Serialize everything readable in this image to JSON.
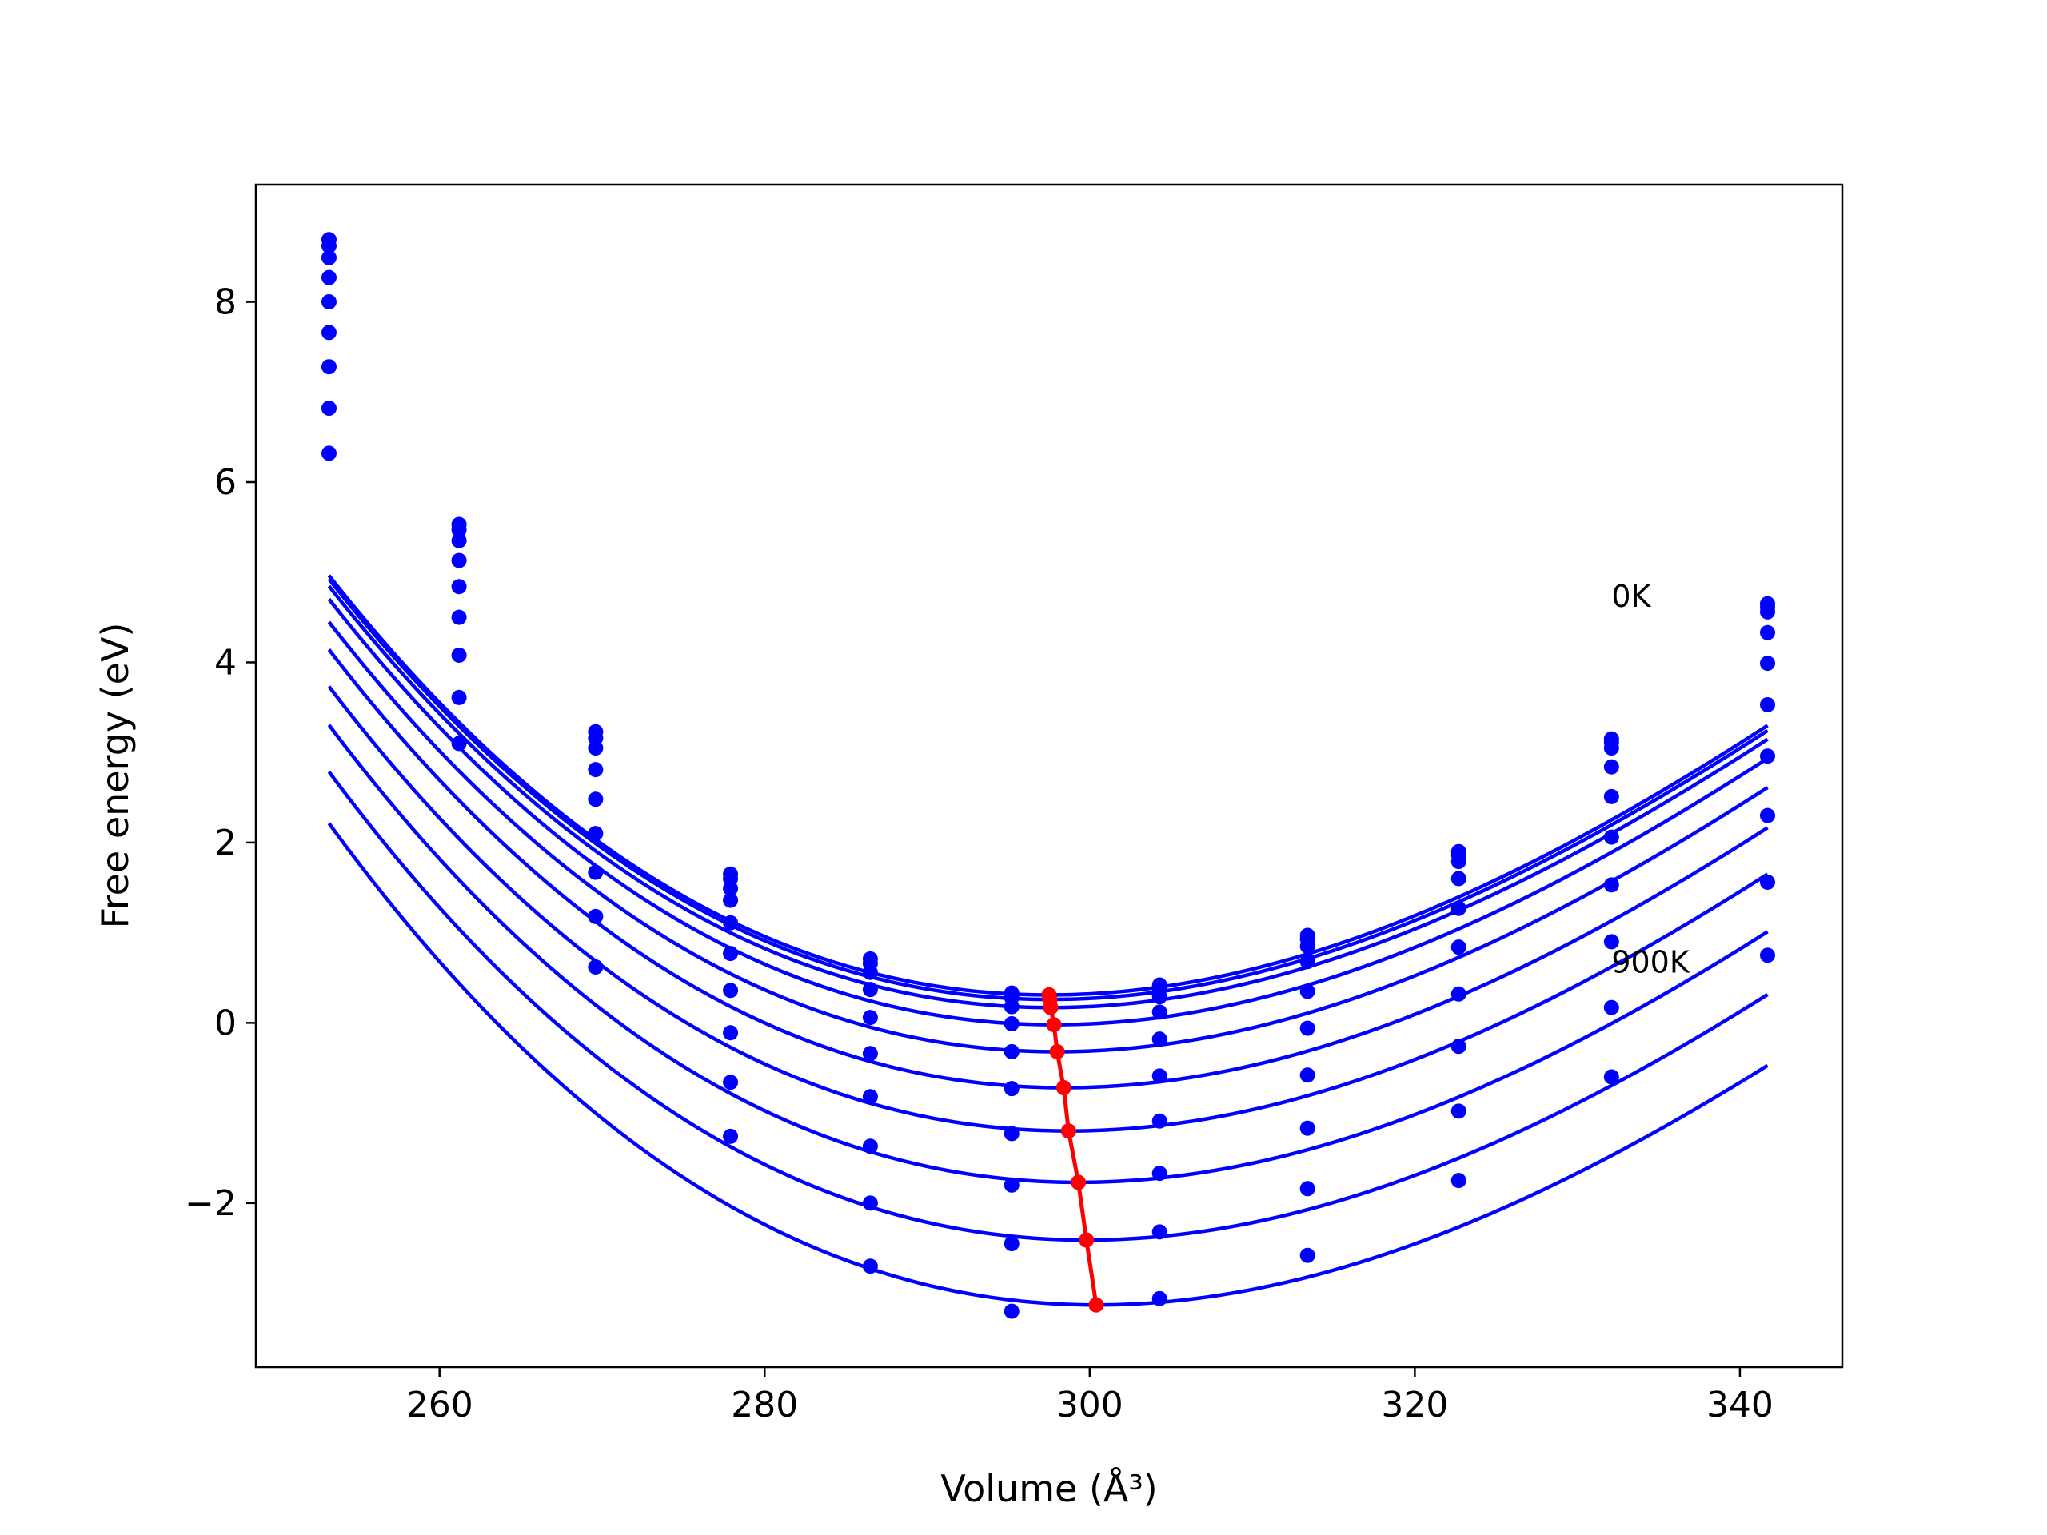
{
  "chart_data": {
    "type": "line",
    "xlabel": "Volume (Å³)",
    "ylabel": "Free energy (eV)",
    "xlim": [
      248.7,
      346.3
    ],
    "ylim": [
      -3.82,
      9.3
    ],
    "xticks": [
      260,
      280,
      300,
      320,
      340
    ],
    "yticks": [
      8,
      6,
      4,
      2,
      0,
      -2
    ],
    "ytick_labels": [
      "8",
      "6",
      "4",
      "2",
      "0",
      "−2"
    ],
    "grid": false,
    "annotations": [
      {
        "text": "0K",
        "x": 332.1,
        "y": 4.74
      },
      {
        "text": "900K",
        "x": 332.1,
        "y": 0.68
      }
    ],
    "curve_color": "#0000ff",
    "minima_color": "#ff0000",
    "volumes": [
      253.2,
      261.2,
      269.6,
      277.9,
      286.5,
      295.2,
      304.3,
      313.4,
      322.7,
      332.1,
      341.7
    ],
    "series": [
      {
        "points": [
          8.69,
          5.53,
          3.23,
          1.65,
          0.71,
          0.33,
          0.42,
          0.97,
          1.9,
          3.15,
          4.65
        ],
        "fit": {
          "vmin": 297.5,
          "emin": 0.31,
          "k": 0.00195,
          "c": 9.5e-06
        }
      },
      {
        "points": [
          8.62,
          5.47,
          3.16,
          1.6,
          0.66,
          0.28,
          0.38,
          0.93,
          1.86,
          3.11,
          4.61
        ],
        "fit": {
          "vmin": 297.55,
          "emin": 0.26,
          "k": 0.00195,
          "c": 9.5e-06
        }
      },
      {
        "points": [
          8.49,
          5.35,
          3.05,
          1.49,
          0.56,
          0.18,
          0.29,
          0.85,
          1.79,
          3.05,
          4.56
        ],
        "fit": {
          "vmin": 297.6,
          "emin": 0.17,
          "k": 0.00195,
          "c": 9.5e-06
        }
      },
      {
        "points": [
          8.27,
          5.13,
          2.81,
          1.36,
          0.37,
          -0.01,
          0.12,
          0.68,
          1.6,
          2.84,
          4.33
        ],
        "fit": {
          "vmin": 297.8,
          "emin": -0.02,
          "k": 0.00195,
          "c": 9.5e-06
        }
      },
      {
        "points": [
          8.0,
          4.84,
          2.48,
          1.11,
          0.06,
          -0.32,
          -0.18,
          0.35,
          1.27,
          2.51,
          3.99
        ],
        "fit": {
          "vmin": 298.0,
          "emin": -0.32,
          "k": 0.00195,
          "c": 9.5e-06
        }
      },
      {
        "points": [
          7.66,
          4.5,
          2.1,
          0.77,
          -0.34,
          -0.73,
          -0.59,
          -0.06,
          0.84,
          2.06,
          3.53
        ],
        "fit": {
          "vmin": 298.4,
          "emin": -0.72,
          "k": 0.00195,
          "c": 9.5e-06
        }
      },
      {
        "points": [
          7.28,
          4.08,
          1.67,
          0.36,
          -0.82,
          -1.23,
          -1.09,
          -0.58,
          0.32,
          1.53,
          2.96
        ],
        "fit": {
          "vmin": 298.7,
          "emin": -1.2,
          "k": 0.00195,
          "c": 9.5e-06
        }
      },
      {
        "points": [
          6.82,
          3.61,
          1.18,
          -0.11,
          -1.37,
          -1.8,
          -1.67,
          -1.17,
          -0.26,
          0.9,
          2.3
        ],
        "fit": {
          "vmin": 299.3,
          "emin": -1.77,
          "k": 0.00195,
          "c": 9.5e-06
        }
      },
      {
        "points": [
          6.32,
          3.1,
          0.62,
          -0.66,
          -2.0,
          -2.45,
          -2.32,
          -1.84,
          -0.98,
          0.17,
          1.56
        ],
        "fit": {
          "vmin": 299.8,
          "emin": -2.41,
          "k": 0.00195,
          "c": 9.5e-06
        }
      },
      {
        "points": [
          null,
          null,
          null,
          -1.26,
          -2.7,
          -3.2,
          -3.06,
          -2.58,
          -1.75,
          -0.6,
          0.75
        ],
        "fit": {
          "vmin": 300.4,
          "emin": -3.13,
          "k": 0.00195,
          "c": 9.5e-06
        }
      }
    ],
    "minima_line": {
      "x": [
        297.5,
        297.55,
        297.6,
        297.8,
        298.0,
        298.4,
        298.7,
        299.3,
        299.8,
        300.4
      ],
      "y": [
        0.31,
        0.26,
        0.17,
        -0.02,
        -0.32,
        -0.72,
        -1.2,
        -1.77,
        -2.41,
        -3.13
      ]
    }
  }
}
